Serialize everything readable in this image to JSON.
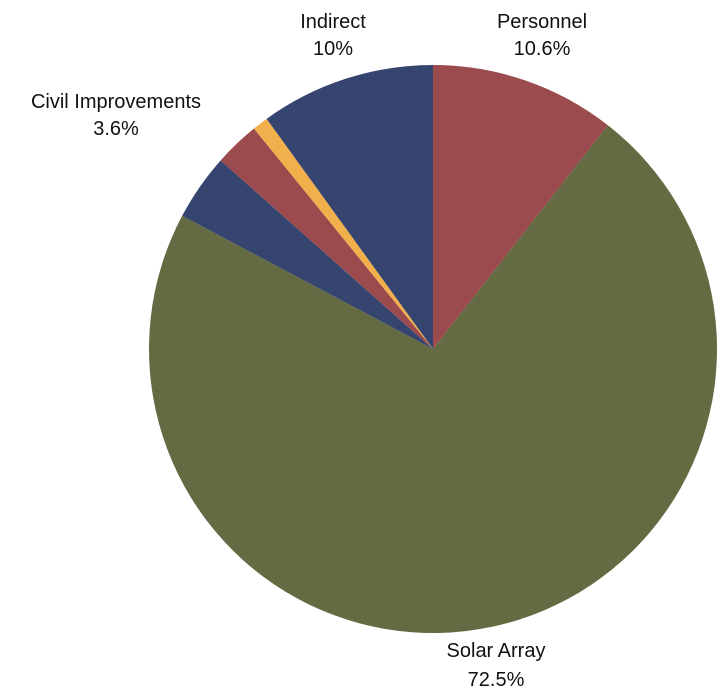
{
  "chart_data": {
    "type": "pie",
    "title": "",
    "slices": [
      {
        "label": "Personnel",
        "value_label": "10.6%",
        "value": 10.6,
        "color": "#9b4a4d",
        "labeled": true
      },
      {
        "label": "Solar Array",
        "value_label": "72.5%",
        "value": 72.5,
        "color": "#646a41",
        "labeled": true
      },
      {
        "label": "",
        "value_label": "",
        "value": 3.8,
        "color": "#354570",
        "labeled": false
      },
      {
        "label": "",
        "value_label": "",
        "value": 2.6,
        "color": "#9b4a4d",
        "labeled": false
      },
      {
        "label": "",
        "value_label": "",
        "value": 0.9,
        "color": "#f2b04c",
        "labeled": false
      },
      {
        "label": "Indirect",
        "value_label": "10%",
        "value": 10,
        "color": "#354570",
        "labeled": true
      }
    ],
    "callouts": [
      {
        "label": "Civil Improvements",
        "value_label": "3.6%"
      }
    ],
    "legend": "none"
  }
}
